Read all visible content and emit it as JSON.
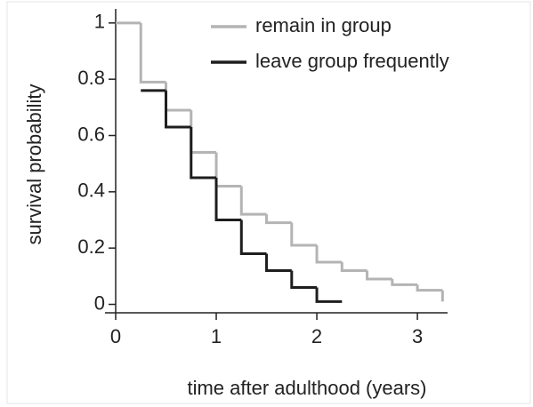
{
  "chart_data": {
    "type": "step",
    "xlabel": "time after adulthood (years)",
    "ylabel": "survival probability",
    "xlim": [
      0,
      3.3
    ],
    "ylim": [
      -0.03,
      1.05
    ],
    "xticks": [
      0,
      1,
      2,
      3
    ],
    "yticks": [
      0,
      0.2,
      0.4,
      0.6,
      0.8,
      1
    ],
    "legend": "upper right",
    "series": [
      {
        "name": "remain in group",
        "color": "#b4b4b4",
        "x": [
          0,
          0.25,
          0.5,
          0.75,
          1,
          1.25,
          1.5,
          1.75,
          2,
          2.25,
          2.5,
          2.75,
          3,
          3.25
        ],
        "values": [
          1,
          0.79,
          0.69,
          0.54,
          0.42,
          0.32,
          0.29,
          0.21,
          0.15,
          0.12,
          0.09,
          0.07,
          0.05,
          0.01
        ]
      },
      {
        "name": "leave group frequently",
        "color": "#1e1e1e",
        "x": [
          0.25,
          0.5,
          0.75,
          1,
          1.25,
          1.5,
          1.75,
          2,
          2.25
        ],
        "values": [
          0.76,
          0.63,
          0.45,
          0.3,
          0.18,
          0.12,
          0.06,
          0.01,
          0.01
        ]
      }
    ]
  }
}
